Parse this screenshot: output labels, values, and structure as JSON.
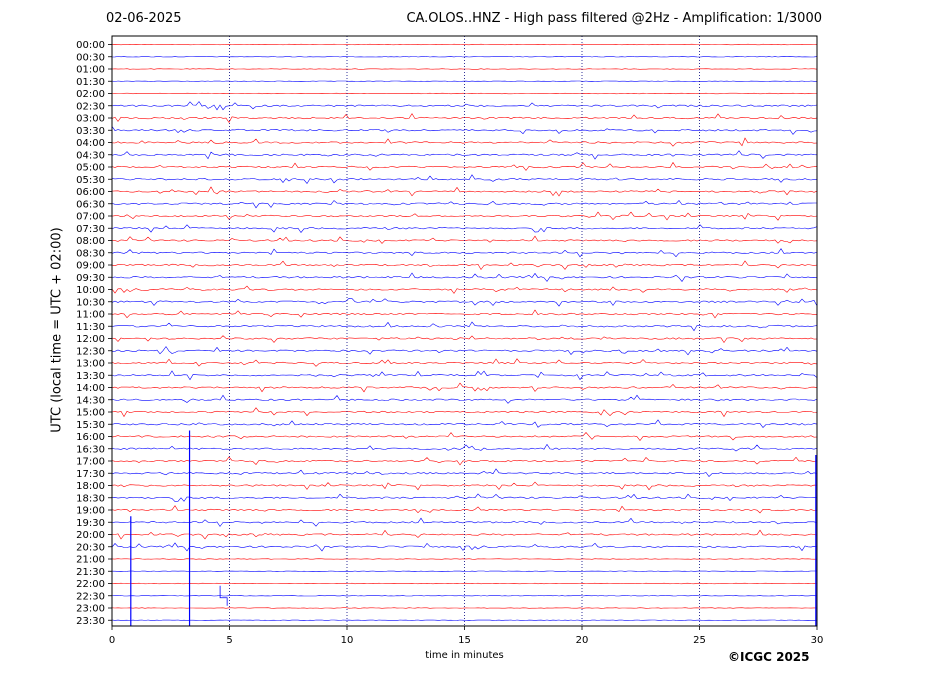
{
  "header": {
    "date": "02-06-2025",
    "title": "CA.OLOS..HNZ - High pass filtered @2Hz - Amplification: 1/3000"
  },
  "credit": "©ICGC 2025",
  "chart_data": {
    "type": "line",
    "title": "CA.OLOS..HNZ - High pass filtered @2Hz - Amplification: 1/3000",
    "xlabel": "time in minutes",
    "ylabel": "UTC (local time = UTC + 02:00)",
    "xlim": [
      0,
      30
    ],
    "xticks": [
      0,
      5,
      10,
      15,
      20,
      25,
      30
    ],
    "xtick_labels": [
      "0",
      "5",
      "10",
      "15",
      "20",
      "25",
      "30"
    ],
    "row_labels": [
      "00:00",
      "00:30",
      "01:00",
      "01:30",
      "02:00",
      "02:30",
      "03:00",
      "03:30",
      "04:00",
      "04:30",
      "05:00",
      "05:30",
      "06:00",
      "06:30",
      "07:00",
      "07:30",
      "08:00",
      "08:30",
      "09:00",
      "09:30",
      "10:00",
      "10:30",
      "11:00",
      "11:30",
      "12:00",
      "12:30",
      "13:00",
      "13:30",
      "14:00",
      "14:30",
      "15:00",
      "15:30",
      "16:00",
      "16:30",
      "17:00",
      "17:30",
      "18:00",
      "18:30",
      "19:00",
      "19:30",
      "20:00",
      "20:30",
      "21:00",
      "21:30",
      "22:00",
      "22:30",
      "23:00",
      "23:30"
    ],
    "vertical_grid": "dotted at 5-minute intervals",
    "colors": {
      "even_rows": "#ff0000",
      "odd_rows": "#0000ff",
      "grid": "#000080"
    }
  }
}
